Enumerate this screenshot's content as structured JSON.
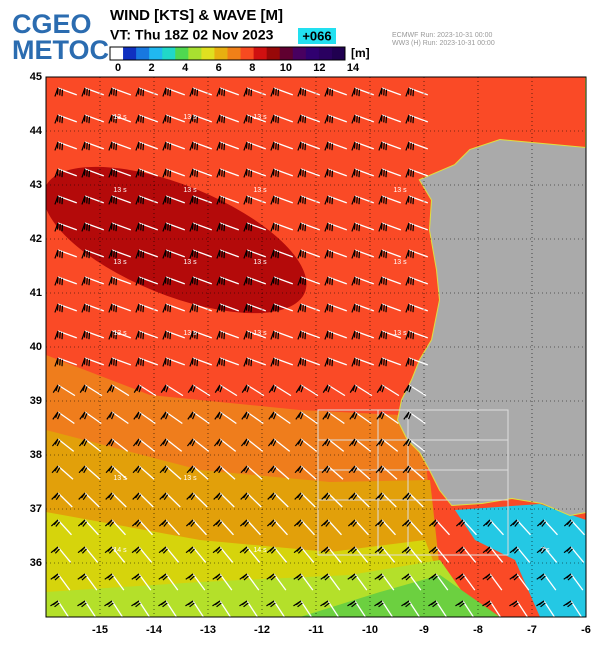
{
  "header": {
    "logo": [
      "CGEO",
      "METOC"
    ],
    "title": "WIND [KTS] & WAVE [M]",
    "valid_time": "VT: Thu 18Z 02 Nov 2023",
    "lead": "+066",
    "runs": [
      "ECMWF    Run: 2023-10-31 00:00",
      "WW3 (H) Run: 2023-10-31 00:00"
    ]
  },
  "colorbar": {
    "range": [
      0,
      14
    ],
    "ticks": [
      0,
      2,
      4,
      6,
      8,
      10,
      12,
      14
    ],
    "unit": "[m]"
  },
  "map": {
    "lon_range": [
      -16,
      -6
    ],
    "lat_range": [
      35,
      45
    ],
    "lon_ticks": [
      -15,
      -14,
      -13,
      -12,
      -11,
      -10,
      -9,
      -8,
      -7,
      -6
    ],
    "lat_ticks": [
      36,
      37,
      38,
      39,
      40,
      41,
      42,
      43,
      44,
      45
    ],
    "period_labels": [
      "13 s",
      "13 s",
      "13 s",
      "13 s",
      "13 s",
      "13 s",
      "13 s",
      "13 s",
      "13 s",
      "13 s",
      "13 s",
      "13 s",
      "13 s",
      "13 s",
      "13 s",
      "13 s",
      "13 s",
      "14 s",
      "14 s",
      "7 s"
    ]
  }
}
